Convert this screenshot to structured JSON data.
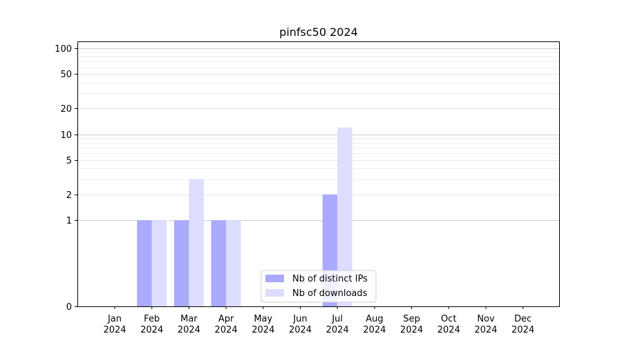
{
  "chart_data": {
    "type": "bar",
    "title": "pinfsc50 2024",
    "xlabel": "",
    "ylabel": "",
    "yscale": "symlog",
    "ylim": [
      0,
      120
    ],
    "yticks": [
      0,
      1,
      2,
      5,
      10,
      20,
      50,
      100
    ],
    "ytick_labels": [
      "0",
      "1",
      "2",
      "5",
      "10",
      "20",
      "50",
      "100"
    ],
    "categories": [
      "Jan\n2024",
      "Feb\n2024",
      "Mar\n2024",
      "Apr\n2024",
      "May\n2024",
      "Jun\n2024",
      "Jul\n2024",
      "Aug\n2024",
      "Sep\n2024",
      "Oct\n2024",
      "Nov\n2024",
      "Dec\n2024"
    ],
    "series": [
      {
        "name": "Nb of distinct IPs",
        "color": "#aaaaff",
        "values": [
          0,
          1,
          1,
          1,
          0,
          0,
          2,
          0,
          0,
          0,
          0,
          0
        ]
      },
      {
        "name": "Nb of downloads",
        "color": "#ddddff",
        "values": [
          0,
          1,
          3,
          1,
          0,
          0,
          12,
          0,
          0,
          0,
          0,
          0
        ]
      }
    ],
    "legend": {
      "placement": "lower-center"
    },
    "grid": true
  }
}
